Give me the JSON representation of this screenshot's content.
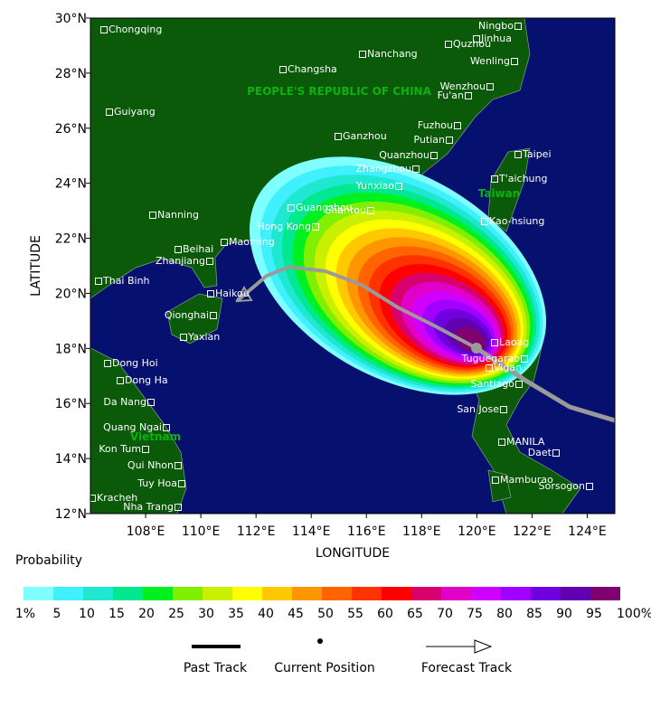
{
  "map": {
    "lat_label": "LATITUDE",
    "lon_label": "LONGITUDE",
    "xlim": [
      106,
      125
    ],
    "ylim": [
      12,
      30
    ],
    "xticks": [
      {
        "value": 108,
        "label": "108°E"
      },
      {
        "value": 110,
        "label": "110°E"
      },
      {
        "value": 112,
        "label": "112°E"
      },
      {
        "value": 114,
        "label": "114°E"
      },
      {
        "value": 116,
        "label": "116°E"
      },
      {
        "value": 118,
        "label": "118°E"
      },
      {
        "value": 120,
        "label": "120°E"
      },
      {
        "value": 122,
        "label": "122°E"
      },
      {
        "value": 124,
        "label": "124°E"
      }
    ],
    "yticks": [
      {
        "value": 12,
        "label": "12°N"
      },
      {
        "value": 14,
        "label": "14°N"
      },
      {
        "value": 16,
        "label": "16°N"
      },
      {
        "value": 18,
        "label": "18°N"
      },
      {
        "value": 20,
        "label": "20°N"
      },
      {
        "value": 22,
        "label": "22°N"
      },
      {
        "value": 24,
        "label": "24°N"
      },
      {
        "value": 26,
        "label": "26°N"
      },
      {
        "value": 28,
        "label": "28°N"
      },
      {
        "value": 30,
        "label": "30°N"
      }
    ],
    "countries": [
      "PEOPLE'S REPUBLIC OF CHINA",
      "Taiwan",
      "Vietnam"
    ],
    "cities": [
      "Chongqing",
      "Ningbo",
      "Jinhua",
      "Quzhou",
      "Changsha",
      "Nanchang",
      "Wenling",
      "Guiyang",
      "Wenzhou",
      "Fu'an",
      "Fuzhou",
      "Ganzhou",
      "Putian",
      "Quanzhou",
      "Taipei",
      "Zhangzhou",
      "T'aichung",
      "Yunxiao",
      "Guangzhou",
      "Shantou",
      "Nanning",
      "Kao-hsiung",
      "Hong Kong",
      "Maoming",
      "Beihai",
      "Zhanjiang",
      "Thai Binh",
      "Haikou",
      "Qionghai",
      "Yaxian",
      "Laoag",
      "Tuguegarao",
      "Dong Hoi",
      "Vigan",
      "Dong Ha",
      "Santiago",
      "Da Nang",
      "San Jose",
      "Quang Ngai",
      "Kon Tum",
      "MANILA",
      "Daet",
      "Qui Nhon",
      "Mamburao",
      "Tuy Hoa",
      "Sorsogon",
      "Kracheh",
      "Nha Trang"
    ]
  },
  "legend": {
    "title": "Probability",
    "labels": [
      "1%",
      "5",
      "10",
      "15",
      "20",
      "25",
      "30",
      "35",
      "40",
      "45",
      "50",
      "55",
      "60",
      "65",
      "70",
      "75",
      "80",
      "85",
      "90",
      "95",
      "100%"
    ],
    "colors": [
      "#80ffff",
      "#40f0ff",
      "#20e8d0",
      "#00e890",
      "#00f020",
      "#80f000",
      "#c8f000",
      "#ffff00",
      "#ffc800",
      "#ff9600",
      "#ff6400",
      "#ff3200",
      "#ff0000",
      "#d8006c",
      "#e000c8",
      "#d000ff",
      "#a000ff",
      "#7000e0",
      "#6000b0",
      "#800070"
    ],
    "items": [
      "Past Track",
      "Current Position",
      "Forecast Track"
    ]
  }
}
